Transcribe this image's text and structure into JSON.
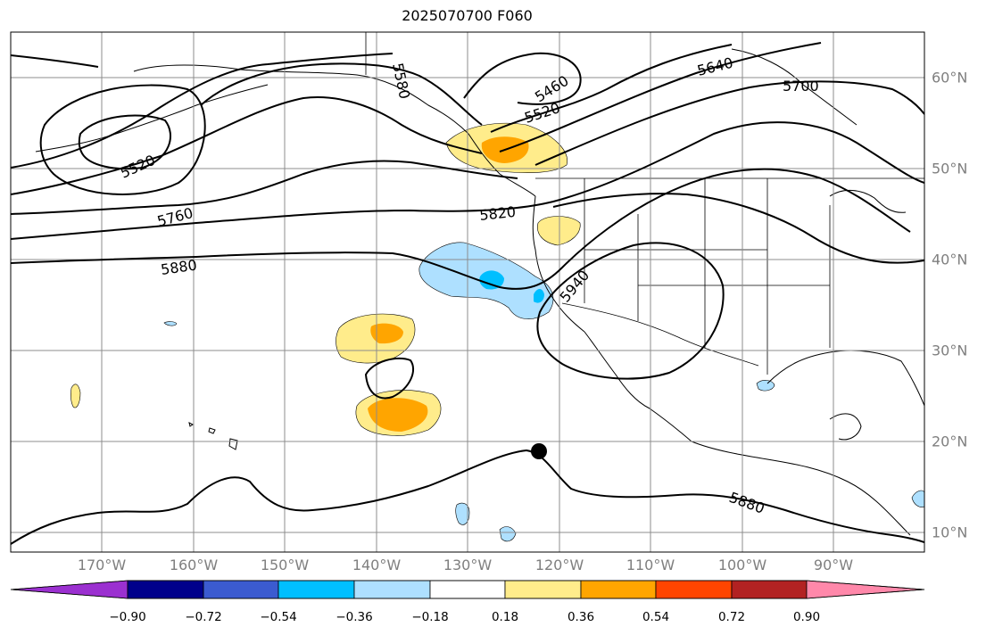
{
  "title": "2025070700 F060",
  "map": {
    "lon_labels": [
      "170°W",
      "160°W",
      "150°W",
      "140°W",
      "130°W",
      "120°W",
      "110°W",
      "100°W",
      "90°W"
    ],
    "lat_labels": [
      "60°N",
      "50°N",
      "40°N",
      "30°N",
      "20°N",
      "10°N"
    ],
    "contour_labels": [
      "5520",
      "5580",
      "5460",
      "5520",
      "5640",
      "5700",
      "5760",
      "5820",
      "5880",
      "5940",
      "5880"
    ],
    "colors": {
      "contour": "#000000",
      "grid": "#8c8c8c",
      "coast": "#000000"
    }
  },
  "colorbar": {
    "tick_labels": [
      "−0.90",
      "−0.72",
      "−0.54",
      "−0.36",
      "−0.18",
      "0.18",
      "0.36",
      "0.54",
      "0.72",
      "0.90"
    ],
    "colors": [
      "#9b30d0",
      "#00008b",
      "#3b5bd0",
      "#00bfff",
      "#aee0ff",
      "#ffffff",
      "#ffec8b",
      "#ffa500",
      "#ff4500",
      "#b22222",
      "#ff88aa"
    ]
  },
  "marker": {
    "shape": "filled-circle",
    "color": "#000000"
  }
}
